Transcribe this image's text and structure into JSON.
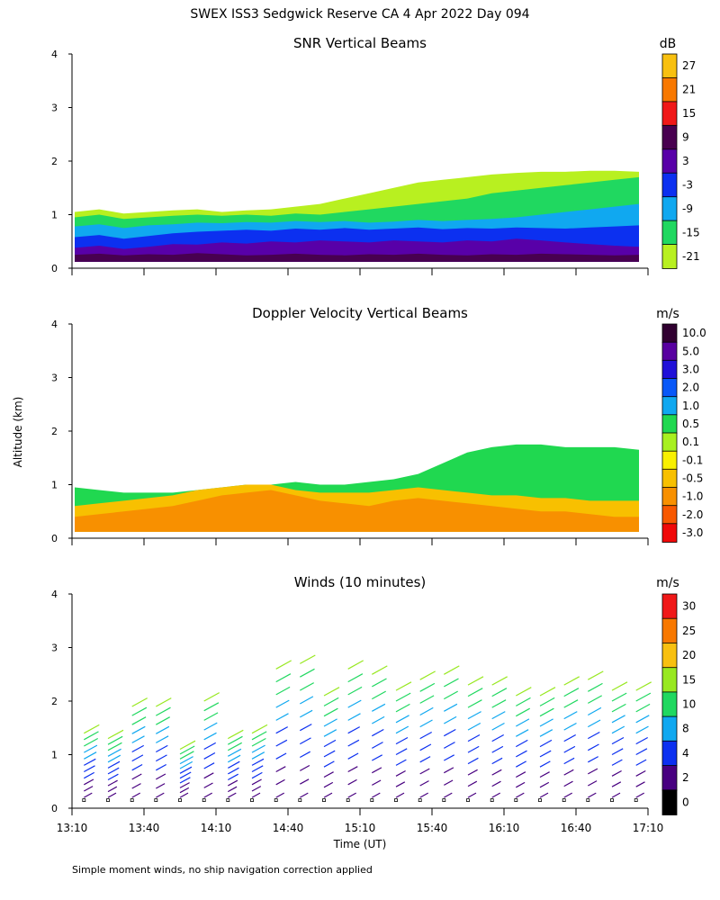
{
  "title": "SWEX ISS3 Sedgwick Reserve CA   4 Apr 2022 Day 094",
  "ylabel": "Altitude (km)",
  "xlabel": "Time (UT)",
  "footnote": "Simple moment winds, no ship navigation correction applied",
  "time_ticks": [
    "13:10",
    "13:40",
    "14:10",
    "14:40",
    "15:10",
    "15:40",
    "16:10",
    "16:40",
    "17:10"
  ],
  "y_ticks": [
    "0",
    "1",
    "2",
    "3",
    "4"
  ],
  "chart_data": [
    {
      "type": "heatmap",
      "title": "SNR Vertical Beams",
      "unit": "dB",
      "xlim": [
        "13:10",
        "17:10"
      ],
      "ylim": [
        0,
        4
      ],
      "colorbar_labels": [
        "27",
        "21",
        "15",
        "9",
        "3",
        "-3",
        "-9",
        "-15",
        "-21"
      ],
      "colors": [
        "#f8c010",
        "#f87800",
        "#f01818",
        "#480050",
        "#5800a8",
        "#0c30f0",
        "#10a8f0",
        "#20d860",
        "#b8f020"
      ],
      "layers": [
        {
          "label": "9",
          "top": [
            0.25,
            0.27,
            0.24,
            0.26,
            0.25,
            0.28,
            0.26,
            0.24,
            0.25,
            0.27,
            0.25,
            0.24,
            0.26,
            0.25,
            0.27,
            0.25,
            0.24,
            0.26,
            0.25,
            0.27,
            0.26,
            0.25,
            0.24,
            0.25
          ]
        },
        {
          "label": "3",
          "top": [
            0.38,
            0.42,
            0.36,
            0.4,
            0.45,
            0.44,
            0.48,
            0.46,
            0.5,
            0.48,
            0.52,
            0.5,
            0.48,
            0.52,
            0.5,
            0.48,
            0.52,
            0.5,
            0.55,
            0.52,
            0.48,
            0.45,
            0.42,
            0.4
          ]
        },
        {
          "label": "-3",
          "top": [
            0.58,
            0.62,
            0.55,
            0.6,
            0.65,
            0.68,
            0.7,
            0.72,
            0.7,
            0.74,
            0.72,
            0.75,
            0.72,
            0.74,
            0.76,
            0.73,
            0.75,
            0.74,
            0.76,
            0.75,
            0.74,
            0.76,
            0.78,
            0.8
          ]
        },
        {
          "label": "-9",
          "top": [
            0.78,
            0.82,
            0.75,
            0.8,
            0.82,
            0.85,
            0.84,
            0.86,
            0.85,
            0.88,
            0.86,
            0.88,
            0.85,
            0.87,
            0.9,
            0.88,
            0.9,
            0.92,
            0.95,
            1.0,
            1.05,
            1.1,
            1.15,
            1.2
          ]
        },
        {
          "label": "-15",
          "top": [
            0.95,
            1.0,
            0.92,
            0.95,
            0.98,
            1.0,
            0.98,
            1.0,
            0.98,
            1.02,
            1.0,
            1.05,
            1.1,
            1.15,
            1.2,
            1.25,
            1.3,
            1.4,
            1.45,
            1.5,
            1.55,
            1.6,
            1.65,
            1.7
          ]
        },
        {
          "label": "-21",
          "top": [
            1.05,
            1.1,
            1.02,
            1.05,
            1.08,
            1.1,
            1.05,
            1.08,
            1.1,
            1.15,
            1.2,
            1.3,
            1.4,
            1.5,
            1.6,
            1.65,
            1.7,
            1.75,
            1.78,
            1.8,
            1.8,
            1.82,
            1.82,
            1.8
          ]
        }
      ]
    },
    {
      "type": "heatmap",
      "title": "Doppler Velocity Vertical Beams",
      "unit": "m/s",
      "xlim": [
        "13:10",
        "17:10"
      ],
      "ylim": [
        0,
        4
      ],
      "colorbar_labels": [
        "10.0",
        "5.0",
        "3.0",
        "2.0",
        "1.0",
        "0.5",
        "0.1",
        "-0.1",
        "-0.5",
        "-1.0",
        "-2.0",
        "-3.0"
      ],
      "colors": [
        "#300030",
        "#5800a0",
        "#2010d8",
        "#0858f8",
        "#10a8f0",
        "#20d850",
        "#a8f020",
        "#f8f000",
        "#f8c000",
        "#f89000",
        "#f85800",
        "#f00808"
      ],
      "layers": [
        {
          "label": "-1.0",
          "top": [
            0.4,
            0.45,
            0.5,
            0.55,
            0.6,
            0.7,
            0.8,
            0.85,
            0.9,
            0.8,
            0.7,
            0.65,
            0.6,
            0.7,
            0.75,
            0.7,
            0.65,
            0.6,
            0.55,
            0.5,
            0.5,
            0.45,
            0.4,
            0.4
          ]
        },
        {
          "label": "-0.5",
          "top": [
            0.6,
            0.65,
            0.7,
            0.75,
            0.8,
            0.9,
            0.95,
            1.0,
            1.0,
            0.9,
            0.85,
            0.85,
            0.85,
            0.9,
            0.95,
            0.9,
            0.85,
            0.8,
            0.8,
            0.75,
            0.75,
            0.7,
            0.7,
            0.7
          ]
        },
        {
          "label": "0.5",
          "top": [
            0.95,
            0.9,
            0.85,
            0.85,
            0.85,
            0.9,
            0.95,
            1.0,
            1.0,
            1.05,
            1.0,
            1.0,
            1.05,
            1.1,
            1.2,
            1.4,
            1.6,
            1.7,
            1.75,
            1.75,
            1.7,
            1.7,
            1.7,
            1.65
          ]
        }
      ]
    },
    {
      "type": "scatter",
      "title": "Winds (10 minutes)",
      "unit": "m/s",
      "xlim": [
        "13:10",
        "17:10"
      ],
      "ylim": [
        0,
        4
      ],
      "colorbar_labels": [
        "30",
        "25",
        "20",
        "15",
        "10",
        "8",
        "4",
        "2",
        "0"
      ],
      "colors": [
        "#f01818",
        "#f87800",
        "#f8c010",
        "#98e820",
        "#20d860",
        "#10a8f0",
        "#0c30f0",
        "#480080",
        "#000000"
      ],
      "times": [
        "13:15",
        "13:25",
        "13:35",
        "13:45",
        "13:55",
        "14:05",
        "14:15",
        "14:25",
        "14:35",
        "14:45",
        "14:55",
        "15:05",
        "15:15",
        "15:25",
        "15:35",
        "15:45",
        "15:55",
        "16:05",
        "16:15",
        "16:25",
        "16:35",
        "16:45",
        "16:55",
        "17:05"
      ],
      "profile_top_km": [
        1.4,
        1.3,
        1.9,
        1.9,
        1.1,
        2.0,
        1.3,
        1.4,
        2.6,
        2.7,
        2.1,
        2.6,
        2.5,
        2.2,
        2.4,
        2.5,
        2.3,
        2.3,
        2.1,
        2.1,
        2.3,
        2.4,
        2.2,
        2.2
      ]
    }
  ]
}
